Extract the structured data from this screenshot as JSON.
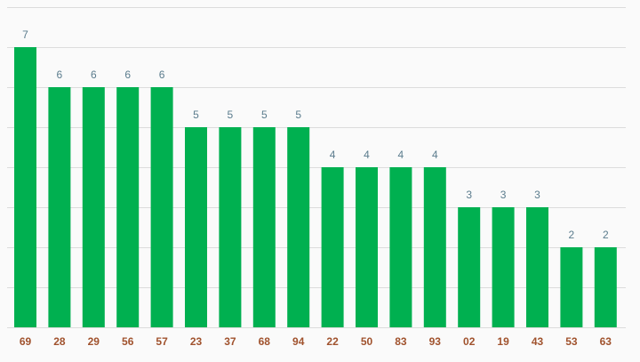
{
  "chart_data": {
    "type": "bar",
    "categories": [
      "69",
      "28",
      "29",
      "56",
      "57",
      "23",
      "37",
      "68",
      "94",
      "22",
      "50",
      "83",
      "93",
      "02",
      "19",
      "43",
      "53",
      "63"
    ],
    "values": [
      7,
      6,
      6,
      6,
      6,
      5,
      5,
      5,
      5,
      4,
      4,
      4,
      4,
      3,
      3,
      3,
      2,
      2
    ],
    "color": "#00b050",
    "ylim": [
      0,
      8
    ],
    "yticks": [
      0,
      1,
      2,
      3,
      4,
      5,
      6,
      7,
      8
    ],
    "grid": true
  }
}
